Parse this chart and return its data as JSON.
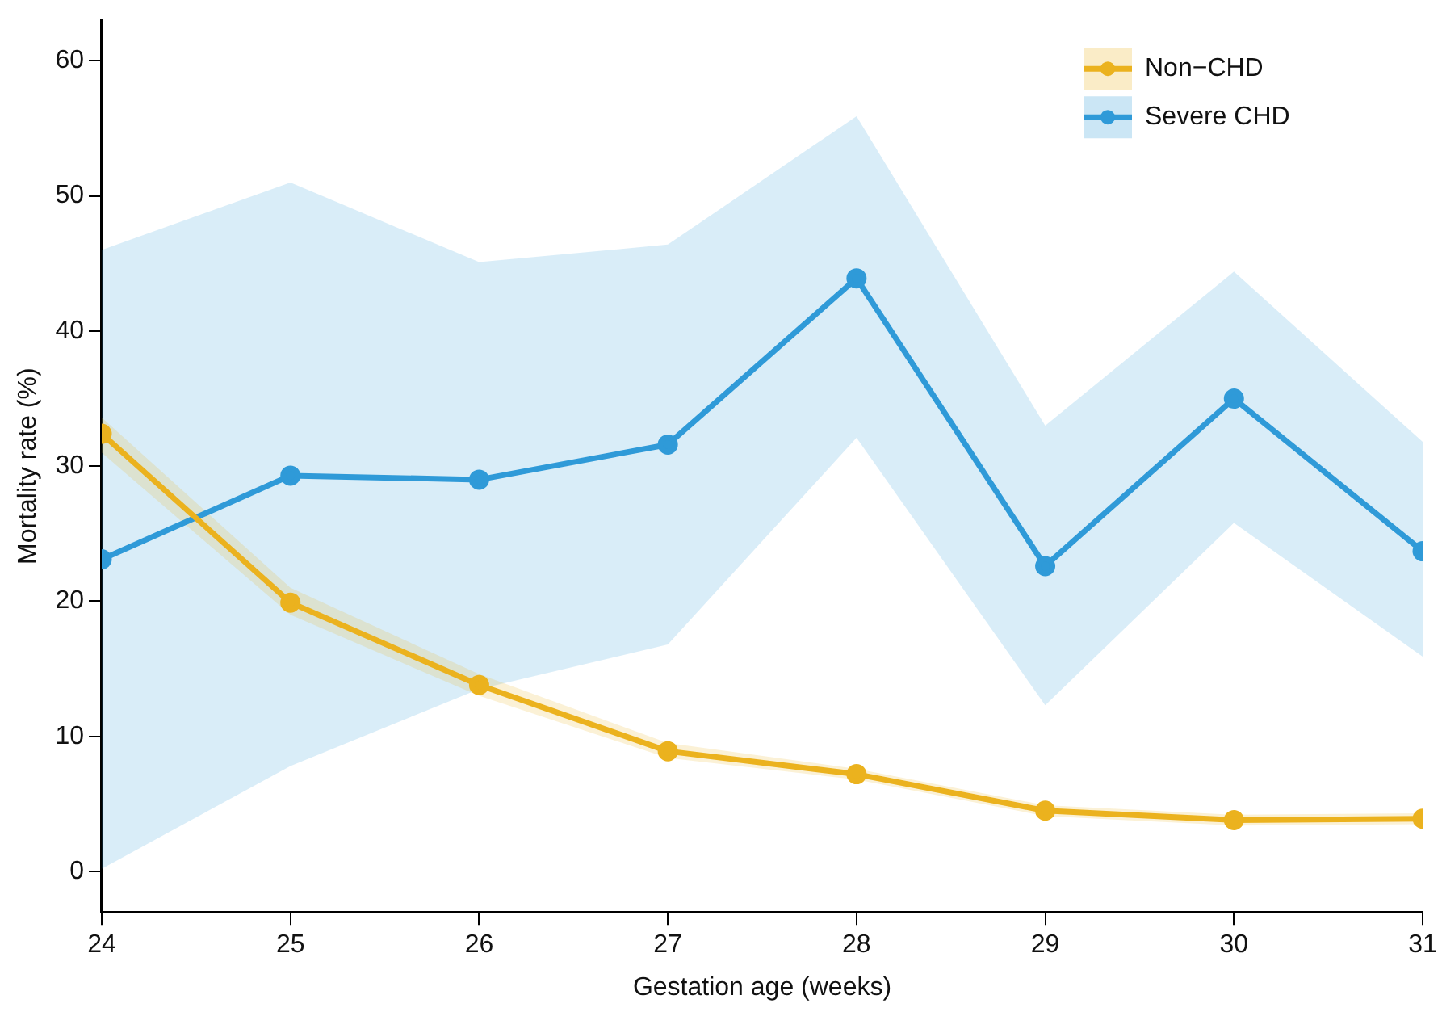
{
  "chart_data": {
    "type": "line",
    "xlabel": "Gestation age (weeks)",
    "ylabel": "Mortality rate (%)",
    "x": [
      24,
      25,
      26,
      27,
      28,
      29,
      30,
      31
    ],
    "series": [
      {
        "name": "Non−CHD",
        "color": "#ebb21e",
        "values": [
          32.4,
          19.9,
          13.8,
          8.9,
          7.2,
          4.5,
          3.8,
          3.9
        ],
        "lower": [
          31.0,
          19.0,
          13.0,
          8.4,
          6.8,
          4.1,
          3.4,
          3.5
        ],
        "upper": [
          33.6,
          21.0,
          14.6,
          9.5,
          7.6,
          4.9,
          4.2,
          4.3
        ]
      },
      {
        "name": "Severe CHD",
        "color": "#2f9ad8",
        "values": [
          23.1,
          29.3,
          29.0,
          31.6,
          43.9,
          22.6,
          35.0,
          23.7
        ],
        "lower": [
          0.2,
          7.8,
          13.5,
          16.8,
          32.1,
          12.3,
          25.8,
          15.9
        ],
        "upper": [
          46.0,
          51.0,
          45.1,
          46.4,
          55.9,
          33.0,
          44.4,
          31.8
        ]
      }
    ],
    "xlim": [
      24,
      31
    ],
    "xticks": [
      24,
      25,
      26,
      27,
      28,
      29,
      30,
      31
    ],
    "ylim": [
      -3,
      63
    ],
    "yticks": [
      0,
      10,
      20,
      30,
      40,
      50,
      60
    ],
    "grid": false,
    "legend": "top right",
    "marker": "circle",
    "line_style": "solid"
  }
}
